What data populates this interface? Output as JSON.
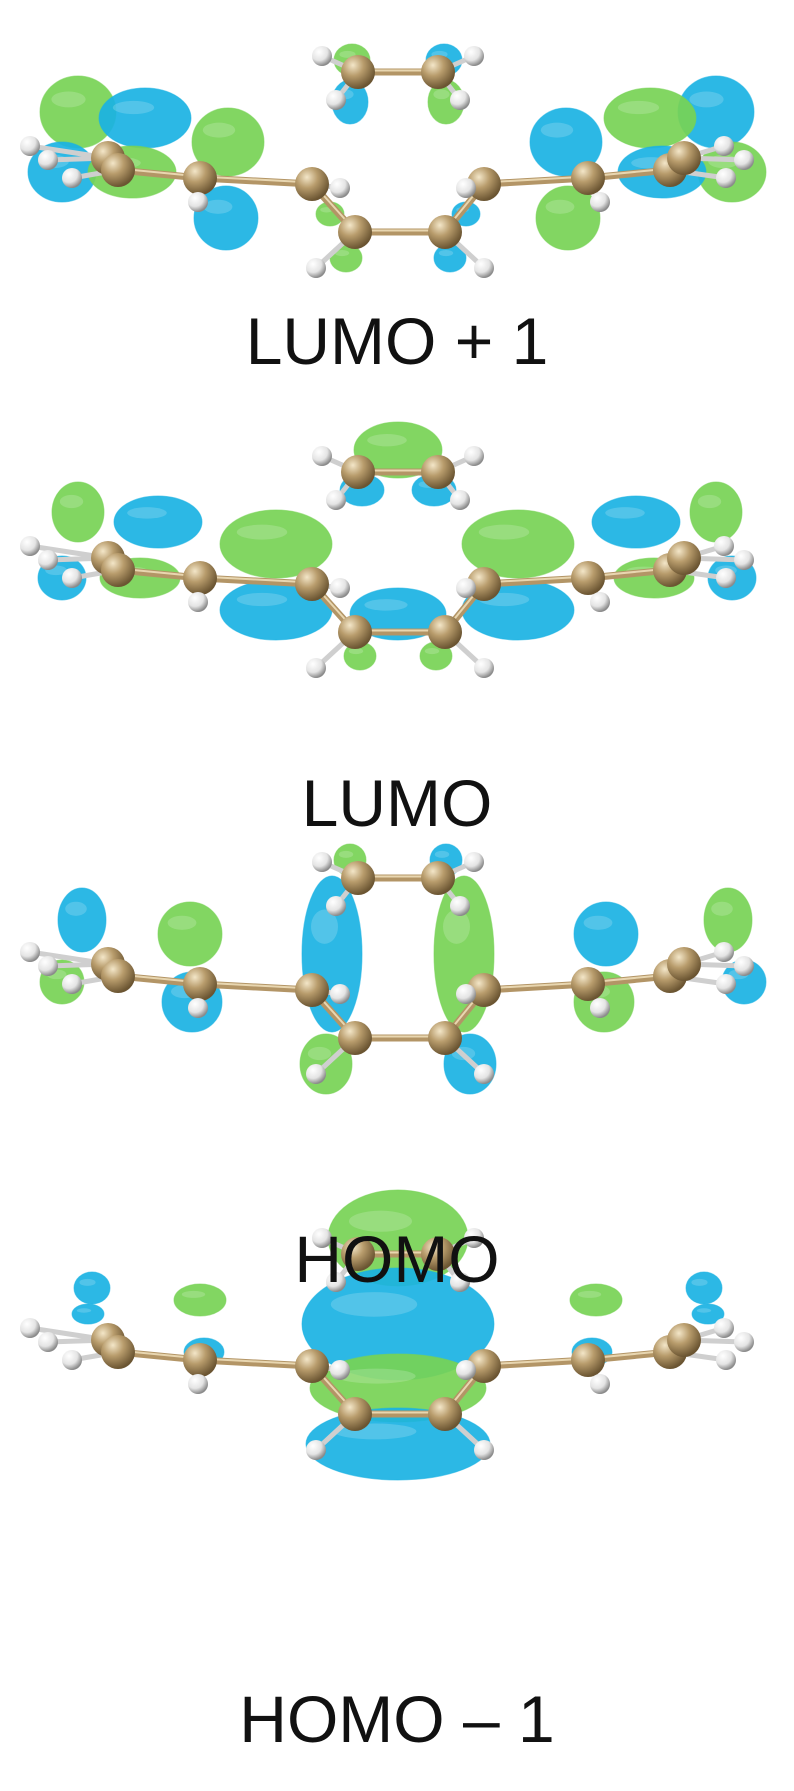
{
  "figure": {
    "colors": {
      "lobe_green": "#77d255",
      "lobe_blue": "#1ab2e3",
      "carbon": "#a98f62",
      "hydrogen": "#f2f2f2",
      "bond": "#b39566"
    },
    "panels": [
      {
        "id": "lumo-plus-1",
        "label": "LUMO + 1"
      },
      {
        "id": "lumo",
        "label": "LUMO"
      },
      {
        "id": "homo",
        "label": "HOMO"
      },
      {
        "id": "homo-minus-1",
        "label": "HOMO – 1"
      }
    ]
  }
}
